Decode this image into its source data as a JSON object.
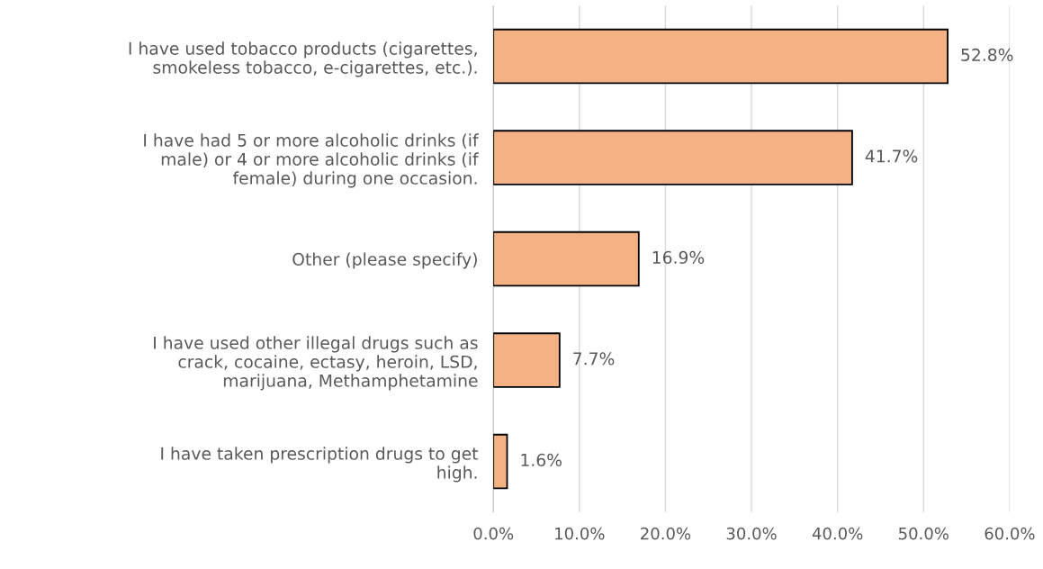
{
  "chart_data": {
    "type": "bar",
    "orientation": "horizontal",
    "categories": [
      "I have used tobacco products (cigarettes,\nsmokeless tobacco, e-cigarettes, etc.).",
      "I have had 5 or more alcoholic drinks (if\nmale) or 4 or more alcoholic drinks (if\nfemale) during one occasion.",
      "Other (please specify)",
      "I have used other illegal drugs such as\ncrack, cocaine, ectasy, heroin, LSD,\nmarijuana, Methamphetamine",
      "I have taken prescription drugs to get\nhigh."
    ],
    "values": [
      52.8,
      41.7,
      16.9,
      7.7,
      1.6
    ],
    "value_labels": [
      "52.8%",
      "41.7%",
      "16.9%",
      "7.7%",
      "1.6%"
    ],
    "color": "#f4b183",
    "xlim": [
      0,
      60
    ],
    "xticks": [
      {
        "value": 0,
        "label": "0.0%"
      },
      {
        "value": 10,
        "label": "10.0%"
      },
      {
        "value": 20,
        "label": "20.0%"
      },
      {
        "value": 30,
        "label": "30.0%"
      },
      {
        "value": 40,
        "label": "40.0%"
      },
      {
        "value": 50,
        "label": "50.0%"
      },
      {
        "value": 60,
        "label": "60.0%"
      }
    ],
    "grid": "x",
    "legend": false
  }
}
